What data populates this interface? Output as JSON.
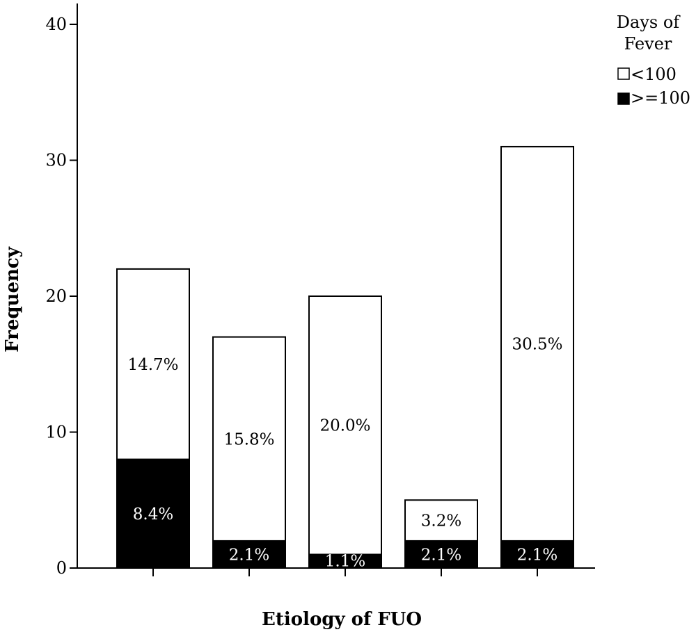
{
  "chart_data": {
    "type": "bar",
    "stacked": true,
    "title": "",
    "xlabel": "Etiology of FUO",
    "ylabel": "Frequency",
    "ylim": [
      0,
      40
    ],
    "yticks": [
      0,
      10,
      20,
      30,
      40
    ],
    "categories": [
      "",
      "",
      "",
      "",
      ""
    ],
    "series": [
      {
        "name": ">=100",
        "color": "#000000",
        "values": [
          8,
          2,
          1,
          2,
          2
        ],
        "labels": [
          "8.4%",
          "2.1%",
          "1.1%",
          "2.1%",
          "2.1%"
        ]
      },
      {
        "name": "<100",
        "color": "#ffffff",
        "values": [
          14,
          15,
          19,
          3,
          29
        ],
        "labels": [
          "14.7%",
          "15.8%",
          "20.0%",
          "3.2%",
          "30.5%"
        ]
      }
    ],
    "legend": {
      "title_lines": [
        "Days of",
        "Fever"
      ],
      "items": [
        "<100",
        ">=100"
      ],
      "position": "top-right"
    },
    "grid": false
  }
}
